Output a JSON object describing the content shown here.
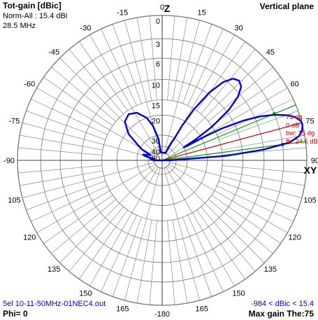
{
  "header": {
    "title": "Tot-gain [dBic]",
    "norm": "Norm-All : 15.4 dBi",
    "frequency": "28.5 MHz",
    "plane": "Vertical plane"
  },
  "footer": {
    "filename": "5el 10-11-50MHz-01NEC4.out",
    "phi": "Phi= 0",
    "range": "-984 < dBic < 15.4",
    "max_gain": "Max gain The:75"
  },
  "axis_letters": {
    "top": "Z",
    "right": "XY"
  },
  "angle_labels": [
    {
      "text": "0",
      "deg": 0
    },
    {
      "text": "15",
      "deg": 15
    },
    {
      "text": "30",
      "deg": 30
    },
    {
      "text": "45",
      "deg": 45
    },
    {
      "text": "60",
      "deg": 60
    },
    {
      "text": "75",
      "deg": 75
    },
    {
      "text": "90",
      "deg": 90
    },
    {
      "text": "105",
      "deg": 105
    },
    {
      "text": "120",
      "deg": 120
    },
    {
      "text": "135",
      "deg": 135
    },
    {
      "text": "150",
      "deg": 150
    },
    {
      "text": "165",
      "deg": 165
    },
    {
      "text": "-180",
      "deg": 180
    },
    {
      "text": "165",
      "deg": 195
    },
    {
      "text": "150",
      "deg": 210
    },
    {
      "text": "135",
      "deg": 225
    },
    {
      "text": "120",
      "deg": 240
    },
    {
      "text": "105",
      "deg": 255
    },
    {
      "text": "-90",
      "deg": 270
    },
    {
      "text": "-75",
      "deg": 285
    },
    {
      "text": "-60",
      "deg": 300
    },
    {
      "text": "-45",
      "deg": 315
    },
    {
      "text": "-30",
      "deg": 330
    },
    {
      "text": "-15",
      "deg": 345
    }
  ],
  "ring_labels": [
    {
      "text": "0",
      "db": 0
    },
    {
      "text": "3",
      "db": -3
    },
    {
      "text": "6",
      "db": -6
    },
    {
      "text": "10",
      "db": -10
    },
    {
      "text": "15",
      "db": -15
    },
    {
      "text": "20",
      "db": -20
    },
    {
      "text": "30",
      "db": -30
    },
    {
      "text": "40",
      "db": -40
    },
    {
      "text": "50",
      "db": -50
    }
  ],
  "beam_annotations": {
    "main_angle": "75 dg",
    "main_gain": "0 dB",
    "beamwidth": "bw: 15 dg",
    "front_back": "fb: 24.5 dB"
  },
  "colors": {
    "pattern": "#0000dd",
    "grid": "#777777",
    "halfpower_lines": "#00a000",
    "main_line": "#cc0000",
    "annotation": "#cc0000",
    "label_blue": "#0000cc"
  },
  "chart_data": {
    "type": "polar",
    "angle_unit": "deg (elevation from zenith)",
    "radial_unit": "dB relative to max",
    "max_gain_dbi": 15.4,
    "main_lobe_deg": 75,
    "beamwidth_deg": 15,
    "halfpower_deg": [
      67.5,
      82.5
    ],
    "series": [
      {
        "points": [
          [
            90,
            -50
          ],
          [
            86,
            -14
          ],
          [
            84,
            -6
          ],
          [
            82,
            -2
          ],
          [
            80,
            -0.7
          ],
          [
            78,
            -0.2
          ],
          [
            76,
            0
          ],
          [
            75,
            0
          ],
          [
            74,
            -0.1
          ],
          [
            72,
            -0.6
          ],
          [
            70,
            -1.6
          ],
          [
            68,
            -3
          ],
          [
            66,
            -5
          ],
          [
            64,
            -8
          ],
          [
            62,
            -13
          ],
          [
            61,
            -18
          ],
          [
            60,
            -28
          ],
          [
            59,
            -30
          ],
          [
            58,
            -22
          ],
          [
            56,
            -15
          ],
          [
            53,
            -9.5
          ],
          [
            50,
            -6.5
          ],
          [
            47,
            -5
          ],
          [
            44,
            -4.6
          ],
          [
            41,
            -5
          ],
          [
            38,
            -6.5
          ],
          [
            35,
            -9.5
          ],
          [
            32,
            -15
          ],
          [
            30,
            -22
          ],
          [
            29,
            -32
          ],
          [
            28,
            -32
          ],
          [
            26,
            -40
          ],
          [
            25,
            -50
          ],
          [
            0,
            -50
          ],
          [
            -8,
            -50
          ],
          [
            -9,
            -45
          ],
          [
            -10,
            -32
          ],
          [
            -15,
            -24
          ],
          [
            -20,
            -20
          ],
          [
            -28,
            -17
          ],
          [
            -36,
            -16
          ],
          [
            -44,
            -17
          ],
          [
            -52,
            -21
          ],
          [
            -58,
            -28
          ],
          [
            -62,
            -32
          ],
          [
            -66,
            -42
          ],
          [
            -70,
            -38
          ],
          [
            -73,
            -34
          ],
          [
            -75,
            -35
          ],
          [
            -77,
            -38
          ],
          [
            -80,
            -48
          ],
          [
            -84,
            -43
          ],
          [
            -87,
            -46
          ],
          [
            -90,
            -50
          ]
        ]
      }
    ]
  }
}
